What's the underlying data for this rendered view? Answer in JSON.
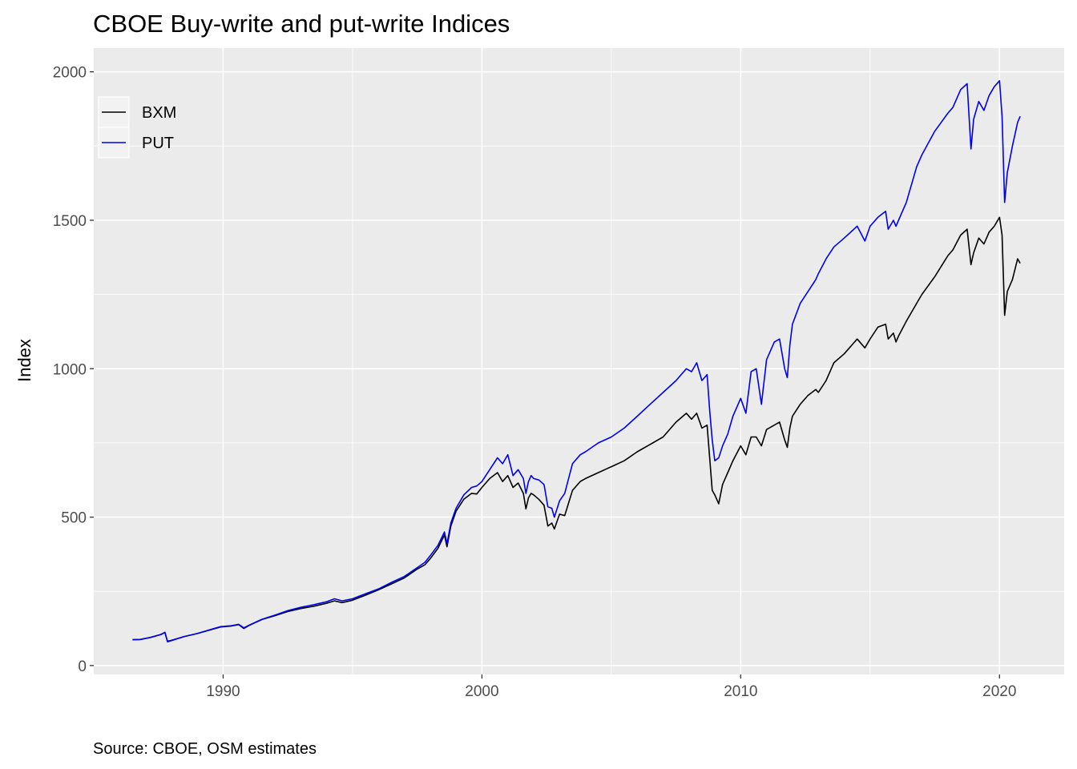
{
  "chart_data": {
    "type": "line",
    "title": "CBOE Buy-write and put-write Indices",
    "xlabel": "",
    "ylabel": "Index",
    "caption": "Source: CBOE, OSM estimates",
    "xlim": [
      1985.0,
      2022.5
    ],
    "ylim": [
      -30,
      2080
    ],
    "x_ticks": [
      1990,
      2000,
      2010,
      2020
    ],
    "y_ticks": [
      0,
      500,
      1000,
      1500,
      2000
    ],
    "grid": true,
    "legend_position": "top-left",
    "series": [
      {
        "name": "BXM",
        "color": "#000000",
        "x": [
          1986.5,
          1986.8,
          1987.2,
          1987.6,
          1987.75,
          1987.85,
          1988.0,
          1988.5,
          1989.0,
          1989.5,
          1989.9,
          1990.3,
          1990.6,
          1990.8,
          1991.0,
          1991.5,
          1992.0,
          1992.5,
          1993.0,
          1993.5,
          1994.0,
          1994.3,
          1994.6,
          1995.0,
          1995.5,
          1996.0,
          1996.5,
          1997.0,
          1997.5,
          1997.8,
          1998.0,
          1998.3,
          1998.55,
          1998.65,
          1998.8,
          1999.0,
          1999.3,
          1999.6,
          1999.8,
          2000.0,
          2000.3,
          2000.6,
          2000.8,
          2001.0,
          2001.2,
          2001.4,
          2001.6,
          2001.7,
          2001.8,
          2001.9,
          2002.0,
          2002.2,
          2002.4,
          2002.55,
          2002.7,
          2002.8,
          2003.0,
          2003.2,
          2003.5,
          2003.8,
          2004.0,
          2004.5,
          2005.0,
          2005.5,
          2006.0,
          2006.5,
          2007.0,
          2007.5,
          2007.9,
          2008.1,
          2008.3,
          2008.5,
          2008.7,
          2008.8,
          2008.9,
          2009.0,
          2009.15,
          2009.3,
          2009.5,
          2009.7,
          2010.0,
          2010.2,
          2010.4,
          2010.6,
          2010.8,
          2011.0,
          2011.3,
          2011.5,
          2011.7,
          2011.8,
          2011.9,
          2012.0,
          2012.3,
          2012.6,
          2012.9,
          2013.0,
          2013.3,
          2013.6,
          2014.0,
          2014.5,
          2014.8,
          2015.0,
          2015.3,
          2015.6,
          2015.7,
          2015.9,
          2016.0,
          2016.1,
          2016.4,
          2016.8,
          2017.0,
          2017.5,
          2018.0,
          2018.2,
          2018.5,
          2018.75,
          2018.9,
          2019.0,
          2019.2,
          2019.4,
          2019.6,
          2019.8,
          2020.0,
          2020.1,
          2020.2,
          2020.3,
          2020.5,
          2020.7,
          2020.8
        ],
        "y": [
          87,
          88,
          95,
          105,
          112,
          82,
          85,
          98,
          108,
          120,
          130,
          133,
          138,
          125,
          135,
          155,
          168,
          182,
          192,
          200,
          210,
          218,
          212,
          220,
          237,
          255,
          275,
          295,
          325,
          340,
          360,
          395,
          440,
          400,
          470,
          520,
          560,
          580,
          578,
          600,
          630,
          650,
          620,
          640,
          600,
          615,
          580,
          528,
          565,
          580,
          575,
          560,
          540,
          470,
          480,
          460,
          510,
          505,
          590,
          620,
          630,
          650,
          670,
          690,
          720,
          745,
          770,
          820,
          850,
          830,
          850,
          800,
          810,
          700,
          590,
          575,
          545,
          610,
          650,
          690,
          740,
          710,
          770,
          770,
          740,
          795,
          810,
          820,
          760,
          735,
          800,
          840,
          880,
          910,
          930,
          920,
          960,
          1020,
          1050,
          1100,
          1070,
          1100,
          1140,
          1150,
          1100,
          1120,
          1090,
          1110,
          1160,
          1220,
          1250,
          1310,
          1380,
          1400,
          1450,
          1470,
          1350,
          1390,
          1440,
          1420,
          1460,
          1480,
          1510,
          1450,
          1180,
          1260,
          1300,
          1370,
          1355
        ]
      },
      {
        "name": "PUT",
        "color": "#0000ee",
        "x": [
          1986.5,
          1986.8,
          1987.2,
          1987.6,
          1987.75,
          1987.85,
          1988.0,
          1988.5,
          1989.0,
          1989.5,
          1989.9,
          1990.3,
          1990.6,
          1990.8,
          1991.0,
          1991.5,
          1992.0,
          1992.5,
          1993.0,
          1993.5,
          1994.0,
          1994.3,
          1994.6,
          1995.0,
          1995.5,
          1996.0,
          1996.5,
          1997.0,
          1997.5,
          1997.8,
          1998.0,
          1998.3,
          1998.55,
          1998.65,
          1998.8,
          1999.0,
          1999.3,
          1999.6,
          1999.8,
          2000.0,
          2000.3,
          2000.6,
          2000.8,
          2001.0,
          2001.2,
          2001.4,
          2001.6,
          2001.7,
          2001.8,
          2001.9,
          2002.0,
          2002.2,
          2002.4,
          2002.55,
          2002.7,
          2002.8,
          2003.0,
          2003.2,
          2003.5,
          2003.8,
          2004.0,
          2004.5,
          2005.0,
          2005.5,
          2006.0,
          2006.5,
          2007.0,
          2007.5,
          2007.9,
          2008.1,
          2008.3,
          2008.5,
          2008.7,
          2008.8,
          2008.9,
          2009.0,
          2009.15,
          2009.3,
          2009.5,
          2009.7,
          2010.0,
          2010.2,
          2010.4,
          2010.6,
          2010.8,
          2011.0,
          2011.3,
          2011.5,
          2011.7,
          2011.8,
          2011.9,
          2012.0,
          2012.3,
          2012.6,
          2012.9,
          2013.0,
          2013.3,
          2013.6,
          2014.0,
          2014.5,
          2014.8,
          2015.0,
          2015.3,
          2015.6,
          2015.7,
          2015.9,
          2016.0,
          2016.1,
          2016.4,
          2016.8,
          2017.0,
          2017.5,
          2018.0,
          2018.2,
          2018.5,
          2018.75,
          2018.9,
          2019.0,
          2019.2,
          2019.4,
          2019.6,
          2019.8,
          2020.0,
          2020.1,
          2020.2,
          2020.3,
          2020.5,
          2020.7,
          2020.8
        ],
        "y": [
          87,
          88,
          95,
          105,
          112,
          80,
          84,
          98,
          108,
          121,
          131,
          134,
          139,
          127,
          136,
          156,
          170,
          185,
          196,
          205,
          215,
          225,
          218,
          225,
          242,
          258,
          280,
          300,
          330,
          348,
          370,
          405,
          450,
          410,
          480,
          530,
          575,
          600,
          605,
          620,
          660,
          700,
          680,
          710,
          640,
          660,
          630,
          580,
          620,
          640,
          630,
          625,
          610,
          535,
          530,
          500,
          555,
          580,
          680,
          710,
          720,
          750,
          770,
          800,
          840,
          880,
          920,
          960,
          1000,
          990,
          1020,
          960,
          980,
          860,
          760,
          690,
          700,
          740,
          780,
          840,
          900,
          850,
          990,
          1000,
          880,
          1030,
          1090,
          1100,
          1000,
          970,
          1080,
          1150,
          1220,
          1260,
          1300,
          1320,
          1370,
          1410,
          1440,
          1480,
          1430,
          1480,
          1510,
          1530,
          1470,
          1500,
          1480,
          1500,
          1560,
          1680,
          1720,
          1800,
          1860,
          1880,
          1940,
          1960,
          1740,
          1840,
          1900,
          1870,
          1920,
          1950,
          1970,
          1850,
          1560,
          1660,
          1750,
          1830,
          1850
        ]
      }
    ]
  }
}
